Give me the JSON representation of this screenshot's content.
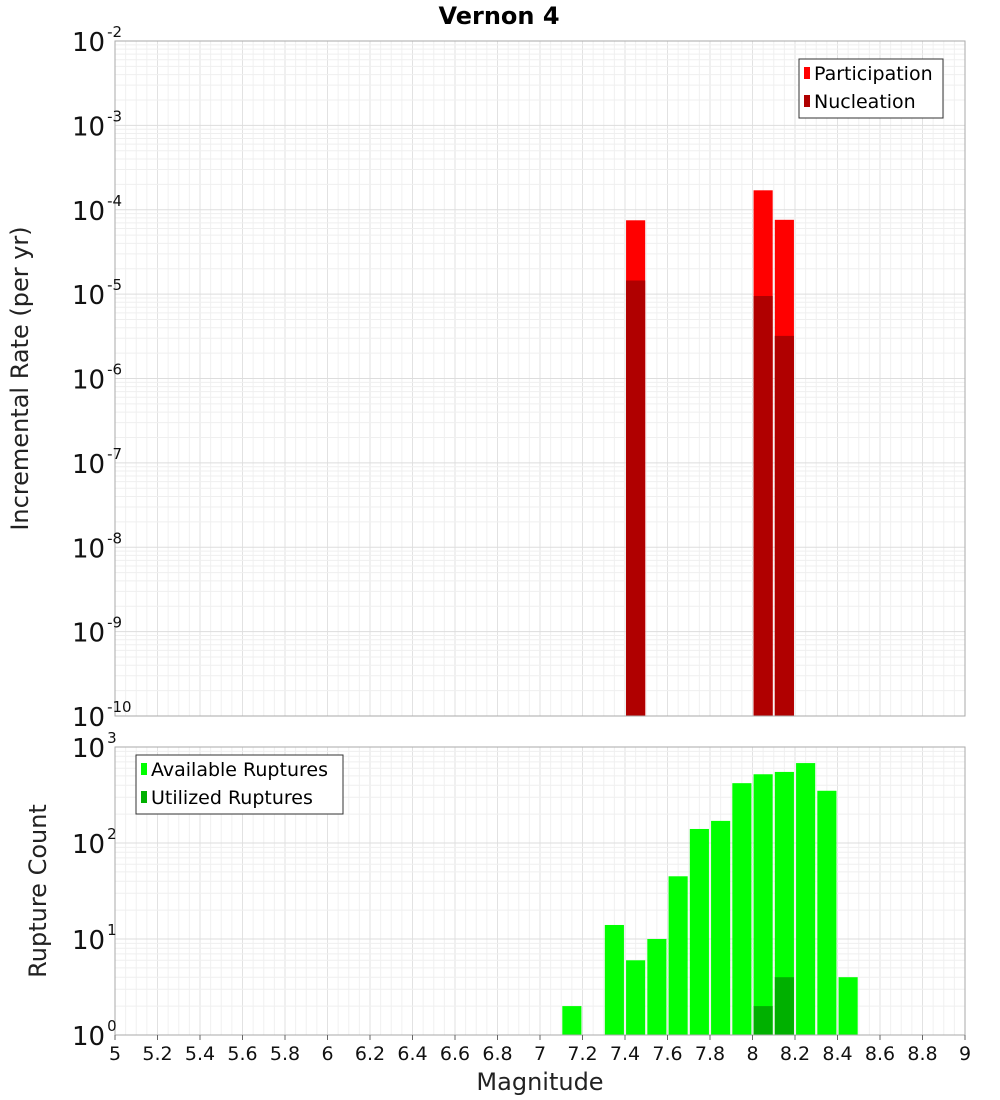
{
  "chart_data": {
    "title": "Vernon 4",
    "xlabel": "Magnitude",
    "xlim": [
      5,
      9
    ],
    "x_ticks": [
      "5",
      "5.2",
      "5.4",
      "5.6",
      "5.8",
      "6",
      "6.2",
      "6.4",
      "6.6",
      "6.8",
      "7",
      "7.2",
      "7.4",
      "7.6",
      "7.8",
      "8",
      "8.2",
      "8.4",
      "8.6",
      "8.8",
      "9"
    ],
    "bin_width": 0.1,
    "panels": [
      {
        "type": "bar",
        "ylabel": "Incremental Rate (per yr)",
        "yscale": "log",
        "ylim_exp": [
          -10,
          -2
        ],
        "y_tick_exps": [
          "-10",
          "-9",
          "-8",
          "-7",
          "-6",
          "-5",
          "-4",
          "-3",
          "-2"
        ],
        "legend_position": "top-right",
        "series": [
          {
            "name": "Participation",
            "color": "#ff0000",
            "x": [
              7.45,
              8.05,
              8.15
            ],
            "values": [
              7.5e-05,
              0.00017,
              7.6e-05
            ]
          },
          {
            "name": "Nucleation",
            "color": "#b00000",
            "x": [
              7.45,
              8.05,
              8.15
            ],
            "values": [
              1.45e-05,
              9.5e-06,
              3.2e-06
            ]
          }
        ]
      },
      {
        "type": "bar",
        "ylabel": "Rupture Count",
        "yscale": "log",
        "ylim_exp": [
          0,
          3
        ],
        "y_tick_exps": [
          "0",
          "1",
          "2",
          "3"
        ],
        "legend_position": "top-left",
        "series": [
          {
            "name": "Available Ruptures",
            "color": "#00ff00",
            "x": [
              6.75,
              7.15,
              7.35,
              7.45,
              7.55,
              7.65,
              7.75,
              7.85,
              7.95,
              8.05,
              8.15,
              8.25,
              8.35,
              8.45
            ],
            "values": [
              1,
              2,
              14,
              6,
              10,
              45,
              140,
              170,
              420,
              520,
              550,
              680,
              350,
              4
            ]
          },
          {
            "name": "Utilized Ruptures",
            "color": "#00b000",
            "x": [
              7.45,
              8.05,
              8.15
            ],
            "values": [
              1,
              2,
              4
            ]
          }
        ]
      }
    ]
  }
}
